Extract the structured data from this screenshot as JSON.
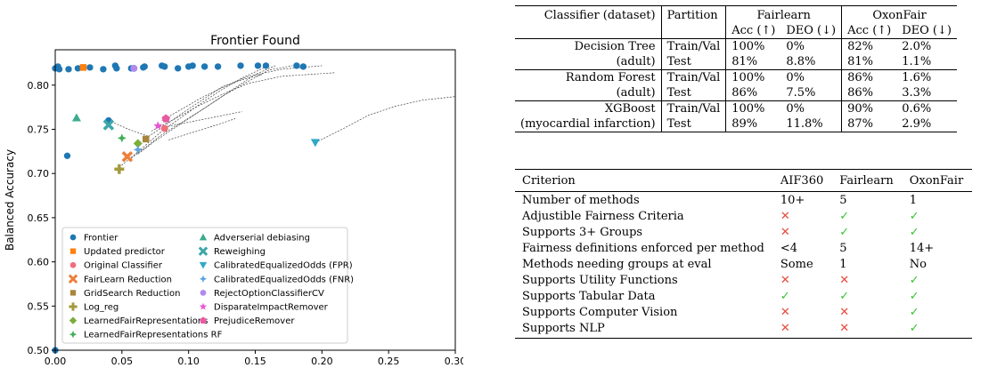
{
  "chart_data": {
    "type": "scatter",
    "title": "Frontier Found",
    "xlabel": "",
    "ylabel": "Balanced Accuracy",
    "xlim": [
      0.0,
      0.3
    ],
    "ylim": [
      0.5,
      0.84
    ],
    "xticks": [
      "0.00",
      "0.05",
      "0.10",
      "0.15",
      "0.20",
      "0.25",
      "0.30"
    ],
    "yticks": [
      "0.50",
      "0.55",
      "0.60",
      "0.65",
      "0.70",
      "0.75",
      "0.80"
    ],
    "xtick_values": [
      0,
      0.05,
      0.1,
      0.15,
      0.2,
      0.25,
      0.3
    ],
    "ytick_values": [
      0.5,
      0.55,
      0.6,
      0.65,
      0.7,
      0.75,
      0.8
    ],
    "legend_placement": "bottom",
    "grid": false,
    "frontier_points": [
      [
        0.0,
        0.5
      ],
      [
        0.0,
        0.819
      ],
      [
        0.002,
        0.821
      ],
      [
        0.003,
        0.818
      ],
      [
        0.009,
        0.72
      ],
      [
        0.01,
        0.818
      ],
      [
        0.017,
        0.819
      ],
      [
        0.021,
        0.82
      ],
      [
        0.026,
        0.82
      ],
      [
        0.036,
        0.818
      ],
      [
        0.045,
        0.822
      ],
      [
        0.046,
        0.819
      ],
      [
        0.057,
        0.819
      ],
      [
        0.066,
        0.82
      ],
      [
        0.067,
        0.821
      ],
      [
        0.08,
        0.822
      ],
      [
        0.082,
        0.821
      ],
      [
        0.092,
        0.819
      ],
      [
        0.1,
        0.821
      ],
      [
        0.103,
        0.822
      ],
      [
        0.112,
        0.821
      ],
      [
        0.122,
        0.821
      ],
      [
        0.139,
        0.822
      ],
      [
        0.152,
        0.822
      ],
      [
        0.158,
        0.822
      ],
      [
        0.181,
        0.822
      ],
      [
        0.186,
        0.821
      ],
      [
        0.04,
        0.76
      ]
    ],
    "curves": [
      [
        [
          0.048,
          0.707
        ],
        [
          0.06,
          0.722
        ],
        [
          0.07,
          0.735
        ],
        [
          0.08,
          0.748
        ],
        [
          0.095,
          0.764
        ],
        [
          0.11,
          0.78
        ],
        [
          0.125,
          0.795
        ],
        [
          0.14,
          0.808
        ],
        [
          0.16,
          0.822
        ]
      ],
      [
        [
          0.055,
          0.715
        ],
        [
          0.068,
          0.73
        ],
        [
          0.08,
          0.744
        ],
        [
          0.095,
          0.758
        ],
        [
          0.11,
          0.772
        ],
        [
          0.126,
          0.788
        ],
        [
          0.142,
          0.802
        ],
        [
          0.16,
          0.817
        ],
        [
          0.178,
          0.822
        ]
      ],
      [
        [
          0.062,
          0.722
        ],
        [
          0.075,
          0.737
        ],
        [
          0.09,
          0.752
        ],
        [
          0.105,
          0.767
        ],
        [
          0.12,
          0.782
        ],
        [
          0.135,
          0.797
        ],
        [
          0.15,
          0.812
        ],
        [
          0.165,
          0.822
        ]
      ],
      [
        [
          0.066,
          0.738
        ],
        [
          0.08,
          0.752
        ],
        [
          0.095,
          0.768
        ],
        [
          0.11,
          0.783
        ],
        [
          0.125,
          0.798
        ],
        [
          0.145,
          0.81
        ],
        [
          0.17,
          0.818
        ],
        [
          0.2,
          0.822
        ]
      ],
      [
        [
          0.072,
          0.748
        ],
        [
          0.09,
          0.762
        ],
        [
          0.108,
          0.777
        ],
        [
          0.126,
          0.79
        ],
        [
          0.145,
          0.802
        ],
        [
          0.17,
          0.81
        ],
        [
          0.21,
          0.814
        ]
      ],
      [
        [
          0.08,
          0.76
        ],
        [
          0.095,
          0.773
        ],
        [
          0.11,
          0.786
        ],
        [
          0.125,
          0.797
        ],
        [
          0.14,
          0.806
        ],
        [
          0.155,
          0.812
        ]
      ],
      [
        [
          0.085,
          0.738
        ],
        [
          0.1,
          0.745
        ],
        [
          0.115,
          0.752
        ],
        [
          0.135,
          0.762
        ]
      ],
      [
        [
          0.08,
          0.752
        ],
        [
          0.1,
          0.758
        ],
        [
          0.12,
          0.764
        ],
        [
          0.14,
          0.77
        ]
      ],
      [
        [
          0.195,
          0.735
        ],
        [
          0.215,
          0.75
        ],
        [
          0.235,
          0.766
        ],
        [
          0.255,
          0.776
        ],
        [
          0.275,
          0.783
        ],
        [
          0.3,
          0.787
        ]
      ],
      [
        [
          0.04,
          0.76
        ],
        [
          0.055,
          0.75
        ],
        [
          0.07,
          0.742
        ]
      ]
    ],
    "series": [
      {
        "name": "Frontier",
        "color": "#1f77b4",
        "marker": "circle"
      },
      {
        "name": "Updated predictor",
        "color": "#ff7f0e",
        "marker": "square",
        "points": [
          [
            0.021,
            0.82
          ]
        ]
      },
      {
        "name": "Original Classifier",
        "color": "#ef6f7b",
        "marker": "circle",
        "points": [
          [
            0.082,
            0.751
          ]
        ]
      },
      {
        "name": "FairLearn Reduction",
        "color": "#ee7f3a",
        "marker": "x",
        "points": [
          [
            0.054,
            0.719
          ]
        ]
      },
      {
        "name": "GridSearch Reduction",
        "color": "#a8843c",
        "marker": "square",
        "points": [
          [
            0.068,
            0.739
          ]
        ]
      },
      {
        "name": "Log_reg",
        "color": "#a39a3e",
        "marker": "plus",
        "points": [
          [
            0.048,
            0.705
          ]
        ]
      },
      {
        "name": "LearnedFairRepresentations",
        "color": "#79ae3b",
        "marker": "diamond",
        "points": [
          [
            0.062,
            0.734
          ]
        ]
      },
      {
        "name": "LearnedFairRepresentations RF",
        "color": "#3fae57",
        "marker": "star4",
        "points": [
          [
            0.05,
            0.74
          ]
        ]
      },
      {
        "name": "Adverserial debiasing",
        "color": "#3cab8d",
        "marker": "triangle-up",
        "points": [
          [
            0.016,
            0.763
          ]
        ]
      },
      {
        "name": "Reweighing",
        "color": "#3da6a9",
        "marker": "x",
        "points": [
          [
            0.04,
            0.755
          ]
        ]
      },
      {
        "name": "CalibratedEqualizedOdds (FPR)",
        "color": "#2fa9c8",
        "marker": "triangle-down",
        "points": [
          [
            0.195,
            0.735
          ]
        ]
      },
      {
        "name": "CalibratedEqualizedOdds (FNR)",
        "color": "#5ba2e3",
        "marker": "star4",
        "points": [
          [
            0.062,
            0.727
          ]
        ]
      },
      {
        "name": "RejectOptionClassifierCV",
        "color": "#b189ee",
        "marker": "circle",
        "points": [
          [
            0.059,
            0.819
          ]
        ]
      },
      {
        "name": "DisparateImpactRemover",
        "color": "#e855d8",
        "marker": "star",
        "points": [
          [
            0.077,
            0.754
          ]
        ]
      },
      {
        "name": "PrejudiceRemover",
        "color": "#e85aa2",
        "marker": "pentagon",
        "points": [
          [
            0.083,
            0.762
          ]
        ]
      }
    ]
  },
  "table1": {
    "headers": {
      "classifier": "Classifier (dataset)",
      "partition": "Partition",
      "fairlearn": "Fairlearn",
      "oxonfair": "OxonFair",
      "acc": "Acc (↑)",
      "deo": "DEO (↓)"
    },
    "rows": [
      {
        "classifier": "Decision Tree",
        "partition": "Train/Val",
        "fl_acc": "100%",
        "fl_deo": "0%",
        "ox_acc": "82%",
        "ox_deo": "2.0%"
      },
      {
        "classifier": "(adult)",
        "partition": "Test",
        "fl_acc": "81%",
        "fl_deo": "8.8%",
        "ox_acc": "81%",
        "ox_deo": "1.1%"
      },
      {
        "classifier": "Random Forest",
        "partition": "Train/Val",
        "fl_acc": "100%",
        "fl_deo": "0%",
        "ox_acc": "86%",
        "ox_deo": "1.6%"
      },
      {
        "classifier": "(adult)",
        "partition": "Test",
        "fl_acc": "86%",
        "fl_deo": "7.5%",
        "ox_acc": "86%",
        "ox_deo": "3.3%"
      },
      {
        "classifier": "XGBoost",
        "partition": "Train/Val",
        "fl_acc": "100%",
        "fl_deo": "0%",
        "ox_acc": "90%",
        "ox_deo": "0.6%"
      },
      {
        "classifier": "(myocardial infarction)",
        "partition": "Test",
        "fl_acc": "89%",
        "fl_deo": "11.8%",
        "ox_acc": "87%",
        "ox_deo": "2.9%"
      }
    ]
  },
  "table2": {
    "headers": [
      "Criterion",
      "AIF360",
      "Fairlearn",
      "OxonFair"
    ],
    "rows": [
      {
        "criterion": "Number of methods",
        "aif": "10+",
        "fl": "5",
        "ox": "1"
      },
      {
        "criterion": "Adjustible Fairness Criteria",
        "aif": "✕",
        "fl": "✓",
        "ox": "✓"
      },
      {
        "criterion": "Supports 3+ Groups",
        "aif": "✕",
        "fl": "✓",
        "ox": "✓"
      },
      {
        "criterion": "Fairness definitions enforced per method",
        "aif": "<4",
        "fl": "5",
        "ox": "14+"
      },
      {
        "criterion": "Methods needing groups at eval",
        "aif": "Some",
        "fl": "1",
        "ox": "No"
      },
      {
        "criterion": "Supports Utility Functions",
        "aif": "✕",
        "fl": "✕",
        "ox": "✓"
      },
      {
        "criterion": "Supports Tabular Data",
        "aif": "✓",
        "fl": "✓",
        "ox": "✓"
      },
      {
        "criterion": "Supports Computer Vision",
        "aif": "✕",
        "fl": "✕",
        "ox": "✓"
      },
      {
        "criterion": "Supports NLP",
        "aif": "✕",
        "fl": "✕",
        "ox": "✓"
      }
    ]
  }
}
